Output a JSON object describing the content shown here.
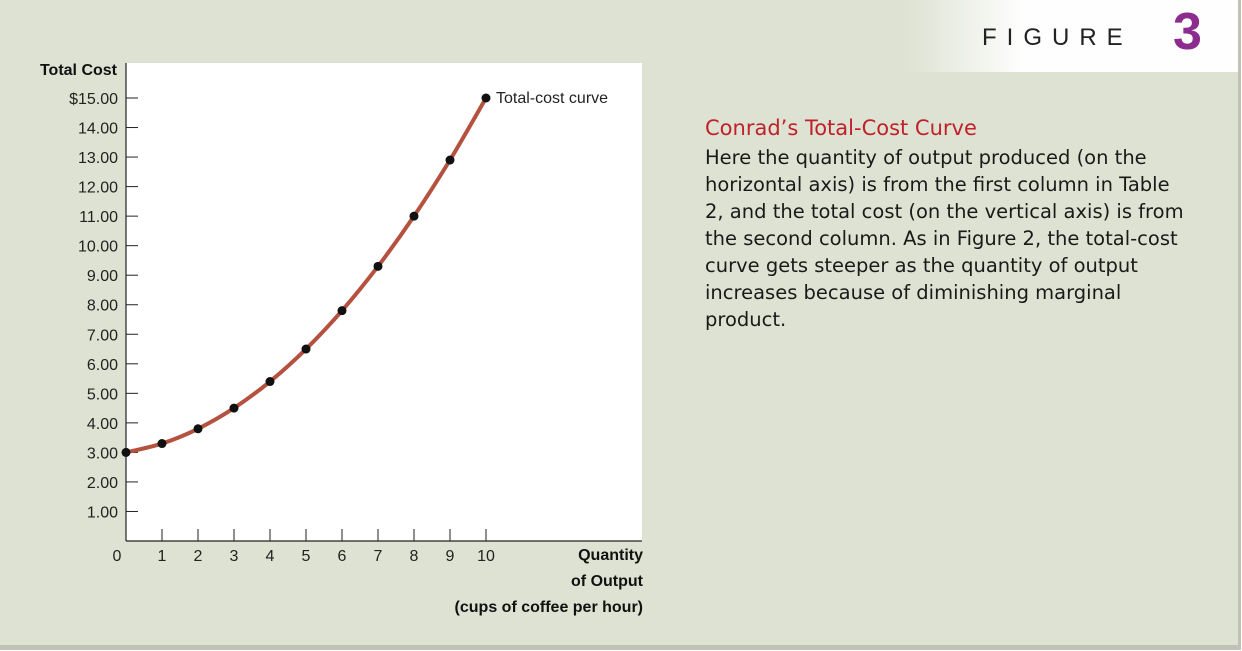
{
  "figure": {
    "word": "FIGURE",
    "number": "3"
  },
  "caption": {
    "title": "Conrad’s Total-Cost Curve",
    "body": "Here the quantity of output produced (on the horizontal axis) is from the first column in Table 2, and the total cost (on the vertical axis) is from the second column. As in Figure 2, the total-cost curve gets steeper as the quantity of output increases because of diminishing marginal product."
  },
  "colors": {
    "curve": "#b5513f",
    "point": "#111111",
    "accent": "#8b2c8e",
    "title": "#c0212a"
  },
  "chart_data": {
    "type": "line",
    "ylabel": "Total Cost",
    "xlabel_lines": [
      "Quantity",
      "of Output",
      "(cups of coffee per hour)"
    ],
    "x_ticks": [
      "0",
      "1",
      "2",
      "3",
      "4",
      "5",
      "6",
      "7",
      "8",
      "9",
      "10"
    ],
    "y_ticks": [
      "1.00",
      "2.00",
      "3.00",
      "4.00",
      "5.00",
      "6.00",
      "7.00",
      "8.00",
      "9.00",
      "10.00",
      "11.00",
      "12.00",
      "13.00",
      "14.00",
      "$15.00"
    ],
    "xlim": [
      0,
      10
    ],
    "ylim": [
      0,
      15
    ],
    "grid": false,
    "series": [
      {
        "name": "Total-cost curve",
        "x": [
          0,
          1,
          2,
          3,
          4,
          5,
          6,
          7,
          8,
          9,
          10
        ],
        "y": [
          3.0,
          3.3,
          3.8,
          4.5,
          5.4,
          6.5,
          7.8,
          9.3,
          11.0,
          12.9,
          15.0
        ]
      }
    ]
  }
}
